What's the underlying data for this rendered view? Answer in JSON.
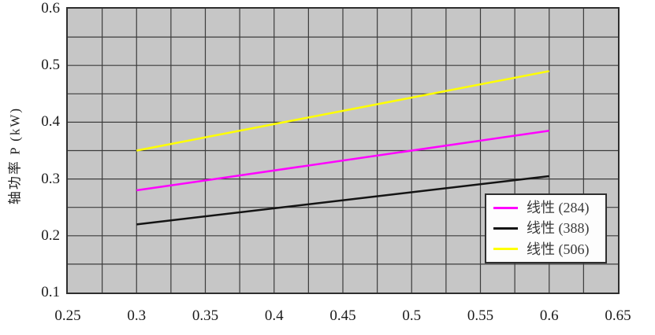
{
  "chart_data": {
    "type": "line",
    "title": "",
    "xlabel": "",
    "ylabel": "轴功率 P (kW)",
    "xlim": [
      0.25,
      0.65
    ],
    "ylim": [
      0.1,
      0.6
    ],
    "x_tick_labels": [
      "0.25",
      "0.3",
      "0.35",
      "0.4",
      "0.45",
      "0.5",
      "0.55",
      "0.6",
      "0.65"
    ],
    "x_tick_values": [
      0.25,
      0.3,
      0.35,
      0.4,
      0.45,
      0.5,
      0.55,
      0.6,
      0.65
    ],
    "y_tick_labels": [
      "0.1",
      "0.2",
      "0.3",
      "0.4",
      "0.5",
      "0.6"
    ],
    "y_tick_values": [
      0.1,
      0.2,
      0.3,
      0.4,
      0.5,
      0.6
    ],
    "x_grid_step": 0.025,
    "y_grid_step": 0.05,
    "grid": "on",
    "plot_bg_color": "#c6c6c6",
    "grid_color": "#3c3c3c",
    "legend_position": "inside-right",
    "series": [
      {
        "name": "线性 (284)",
        "color": "#ff00ff",
        "points": [
          {
            "x": 0.3,
            "y": 0.28
          },
          {
            "x": 0.6,
            "y": 0.385
          }
        ]
      },
      {
        "name": "线性 (388)",
        "color": "#141414",
        "points": [
          {
            "x": 0.3,
            "y": 0.22
          },
          {
            "x": 0.6,
            "y": 0.305
          }
        ]
      },
      {
        "name": "线性 (506)",
        "color": "#ffff00",
        "points": [
          {
            "x": 0.3,
            "y": 0.35
          },
          {
            "x": 0.6,
            "y": 0.49
          }
        ]
      }
    ]
  }
}
